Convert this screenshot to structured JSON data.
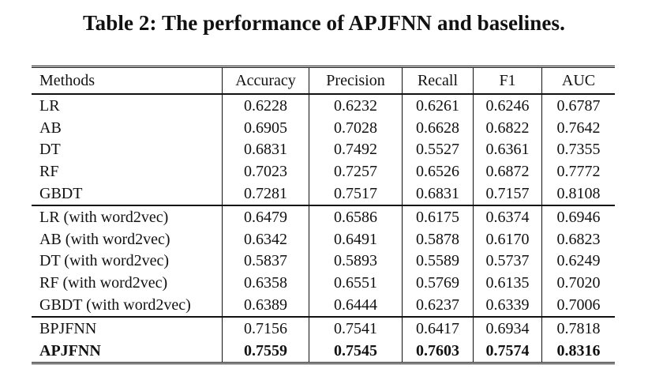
{
  "caption": "Table 2: The performance of APJFNN and baselines.",
  "columns": [
    "Methods",
    "Accuracy",
    "Precision",
    "Recall",
    "F1",
    "AUC"
  ],
  "groups": [
    {
      "rows": [
        {
          "method": "LR",
          "values": [
            "0.6228",
            "0.6232",
            "0.6261",
            "0.6246",
            "0.6787"
          ]
        },
        {
          "method": "AB",
          "values": [
            "0.6905",
            "0.7028",
            "0.6628",
            "0.6822",
            "0.7642"
          ]
        },
        {
          "method": "DT",
          "values": [
            "0.6831",
            "0.7492",
            "0.5527",
            "0.6361",
            "0.7355"
          ]
        },
        {
          "method": "RF",
          "values": [
            "0.7023",
            "0.7257",
            "0.6526",
            "0.6872",
            "0.7772"
          ]
        },
        {
          "method": "GBDT",
          "values": [
            "0.7281",
            "0.7517",
            "0.6831",
            "0.7157",
            "0.8108"
          ]
        }
      ]
    },
    {
      "rows": [
        {
          "method": "LR (with word2vec)",
          "values": [
            "0.6479",
            "0.6586",
            "0.6175",
            "0.6374",
            "0.6946"
          ]
        },
        {
          "method": "AB (with word2vec)",
          "values": [
            "0.6342",
            "0.6491",
            "0.5878",
            "0.6170",
            "0.6823"
          ]
        },
        {
          "method": "DT (with word2vec)",
          "values": [
            "0.5837",
            "0.5893",
            "0.5589",
            "0.5737",
            "0.6249"
          ]
        },
        {
          "method": "RF (with word2vec)",
          "values": [
            "0.6358",
            "0.6551",
            "0.5769",
            "0.6135",
            "0.7020"
          ]
        },
        {
          "method": "GBDT (with word2vec)",
          "values": [
            "0.6389",
            "0.6444",
            "0.6237",
            "0.6339",
            "0.7006"
          ]
        }
      ]
    },
    {
      "rows": [
        {
          "method": "BPJFNN",
          "values": [
            "0.7156",
            "0.7541",
            "0.6417",
            "0.6934",
            "0.7818"
          ]
        },
        {
          "method": "APJFNN",
          "values": [
            "0.7559",
            "0.7545",
            "0.7603",
            "0.7574",
            "0.8316"
          ],
          "bold": true
        }
      ]
    }
  ]
}
